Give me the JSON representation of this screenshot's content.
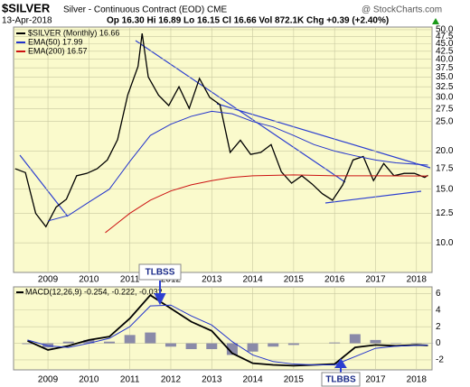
{
  "header": {
    "symbol": "$SILVER",
    "description": "Silver - Continuous Contract (EOD) CME",
    "watermark": "@ StockCharts.com",
    "date": "13-Apr-2018",
    "quote": "Op 16.30 Hi 16.89 Lo 16.15 Cl 16.66 Vol 872.1K Chg +0.39 (+2.40%)"
  },
  "annotations": [
    "TLBSS",
    "TLBBS"
  ],
  "chart_data": [
    {
      "type": "line",
      "log_scale": true,
      "grid": true,
      "xlim": [
        2008.16,
        2018.38
      ],
      "xticks": [
        2009,
        2010,
        2011,
        2012,
        2013,
        2014,
        2015,
        2016,
        2017,
        2018
      ],
      "ylim": [
        8,
        51
      ],
      "yticks": [
        {
          "value": 10,
          "label": "10.0"
        },
        {
          "value": 12.5,
          "label": "12.5"
        },
        {
          "value": 15,
          "label": "15.0"
        },
        {
          "value": 17.5,
          "label": "17.5"
        },
        {
          "value": 20,
          "label": "20.0"
        },
        {
          "value": 25,
          "label": "25.0"
        },
        {
          "value": 27.5,
          "label": "27.5"
        },
        {
          "value": 30,
          "label": "30.0"
        },
        {
          "value": 32.5,
          "label": "32.5"
        },
        {
          "value": 35,
          "label": "35.0"
        },
        {
          "value": 37.5,
          "label": "37.5"
        },
        {
          "value": 40,
          "label": "40.0"
        },
        {
          "value": 42.5,
          "label": "42.5"
        },
        {
          "value": 45,
          "label": "45.0"
        },
        {
          "value": 47.5,
          "label": "47.5"
        },
        {
          "value": 50,
          "label": "50.0"
        }
      ],
      "series": [
        {
          "name": "$SILVER (Monthly) 16.66",
          "color": "#000000",
          "x": [
            2008.2,
            2008.45,
            2008.7,
            2008.95,
            2009.2,
            2009.45,
            2009.7,
            2009.95,
            2010.2,
            2010.45,
            2010.7,
            2010.95,
            2011.2,
            2011.3,
            2011.45,
            2011.7,
            2011.95,
            2012.2,
            2012.45,
            2012.7,
            2012.95,
            2013.2,
            2013.45,
            2013.7,
            2013.95,
            2014.2,
            2014.45,
            2014.7,
            2014.95,
            2015.2,
            2015.45,
            2015.7,
            2015.95,
            2016.2,
            2016.45,
            2016.7,
            2016.95,
            2017.2,
            2017.45,
            2017.7,
            2017.95,
            2018.2,
            2018.28
          ],
          "values": [
            17.5,
            17,
            12.5,
            11.3,
            13.1,
            13.9,
            16.6,
            16.9,
            17.5,
            18.7,
            21.8,
            30.6,
            37.9,
            48.6,
            35,
            30.5,
            28.2,
            32.5,
            27.6,
            34.6,
            30,
            28.4,
            19.8,
            21.7,
            19.5,
            19.8,
            21,
            17.1,
            15.7,
            16.6,
            15.6,
            14.5,
            13.8,
            15.5,
            18.7,
            19.2,
            16,
            18.2,
            16.6,
            16.9,
            16.9,
            16.4,
            16.66
          ]
        },
        {
          "name": "EMA(50) 17.99",
          "color": "#2233cc",
          "x": [
            2009.0,
            2009.5,
            2010.0,
            2010.5,
            2011.0,
            2011.5,
            2012.0,
            2012.5,
            2013.0,
            2013.5,
            2014.0,
            2014.5,
            2015.0,
            2015.5,
            2016.0,
            2016.5,
            2017.0,
            2017.5,
            2018.28
          ],
          "values": [
            11.8,
            12.3,
            13.6,
            15,
            18.5,
            22.5,
            24.5,
            26,
            27,
            26.5,
            25,
            24,
            22.5,
            21,
            20,
            19.3,
            18.7,
            18.3,
            17.99
          ]
        },
        {
          "name": "EMA(200) 16.57",
          "color": "#cc1111",
          "x": [
            2010.4,
            2011.0,
            2011.5,
            2012.0,
            2012.5,
            2013.0,
            2013.5,
            2014.0,
            2015.0,
            2016.0,
            2017.0,
            2018.28
          ],
          "values": [
            10.8,
            12.5,
            13.8,
            14.8,
            15.5,
            16,
            16.4,
            16.6,
            16.7,
            16.6,
            16.6,
            16.57
          ]
        }
      ]
    },
    {
      "type": "macd",
      "grid": true,
      "legend_text": "MACD(12,26,9) -0.254, -0.222, -0.032",
      "xlim": [
        2008.16,
        2018.38
      ],
      "xticks": [
        2009,
        2010,
        2011,
        2012,
        2013,
        2014,
        2015,
        2016,
        2017,
        2018
      ],
      "ylim": [
        -3.2,
        6.8
      ],
      "yticks": [
        -2,
        0,
        2,
        4,
        6
      ],
      "x": [
        2008.5,
        2009.0,
        2009.5,
        2010.0,
        2010.5,
        2011.0,
        2011.5,
        2012.0,
        2012.5,
        2013.0,
        2013.5,
        2014.0,
        2014.5,
        2015.0,
        2015.5,
        2016.0,
        2016.5,
        2017.0,
        2017.5,
        2018.0,
        2018.28
      ],
      "series": [
        {
          "kind": "line",
          "color": "#000000",
          "values": [
            0.3,
            -0.8,
            -0.3,
            0.4,
            0.8,
            3.0,
            5.8,
            4.2,
            2.6,
            1.5,
            -1.2,
            -2.4,
            -2.6,
            -2.7,
            -2.6,
            -2.5,
            -0.5,
            -0.2,
            -0.3,
            -0.2,
            -0.254
          ]
        },
        {
          "kind": "line",
          "color": "#2233cc",
          "values": [
            0.4,
            -0.3,
            -0.5,
            0.0,
            0.6,
            2.0,
            4.5,
            4.6,
            3.3,
            2.2,
            0.2,
            -1.4,
            -2.2,
            -2.5,
            -2.6,
            -2.6,
            -1.6,
            -0.6,
            -0.35,
            -0.25,
            -0.222
          ]
        },
        {
          "kind": "bar",
          "color": "#8a8aa8",
          "values": [
            -0.1,
            -0.5,
            0.2,
            0.4,
            0.2,
            1.0,
            1.3,
            -0.4,
            -0.7,
            -0.7,
            -1.4,
            -1.0,
            -0.4,
            -0.2,
            0,
            0.1,
            1.1,
            0.4,
            0.05,
            0.05,
            -0.032
          ]
        }
      ]
    }
  ]
}
